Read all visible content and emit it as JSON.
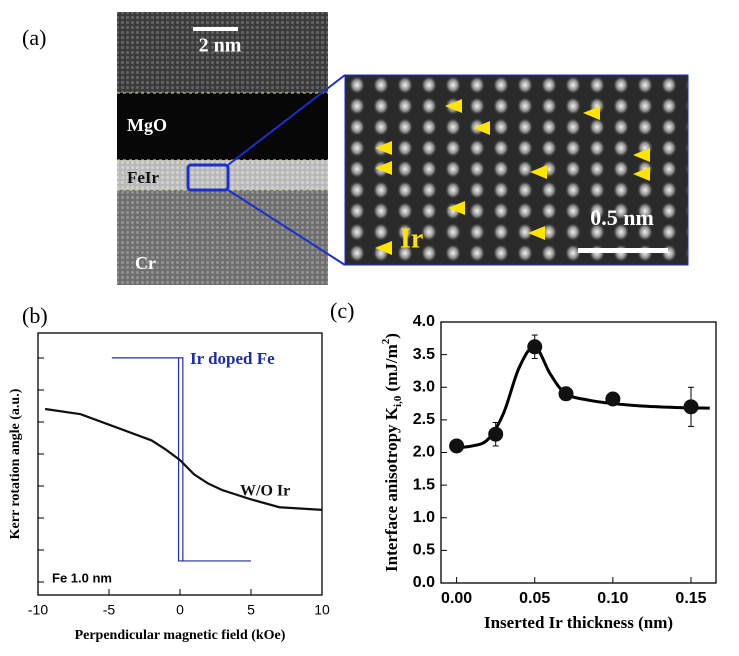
{
  "panel_a": {
    "label": "(a)",
    "scale_left": "2 nm",
    "layer_top": "MgO",
    "layer_mid": "FeIr",
    "layer_bottom": "Cr",
    "scale_right": "0.5 nm",
    "atom": "Ir"
  },
  "chart_data": [
    {
      "type": "line",
      "panel": "(b)",
      "xlabel": "Perpendicular magnetic field (kOe)",
      "ylabel": "Kerr rotation angle (a.u.)",
      "xlim": [
        -10,
        10
      ],
      "xticks": [
        -10,
        -5,
        0,
        5,
        10
      ],
      "ylim": [
        -1,
        1
      ],
      "annotation": "Fe 1.0 nm",
      "series": [
        {
          "name": "Ir doped Fe",
          "color": "#1f2ea8",
          "x": [
            -4.8,
            0.2,
            0.2,
            5,
            -0.1,
            -0.1
          ],
          "values": [
            0.81,
            0.81,
            -0.74,
            -0.74,
            -0.74,
            0.81
          ]
        },
        {
          "name": "W/O Ir",
          "color": "#111111",
          "x": [
            -9.5,
            -7,
            -5,
            -3,
            -2,
            -1,
            0,
            1,
            2,
            3,
            5,
            7,
            10
          ],
          "values": [
            0.42,
            0.38,
            0.3,
            0.22,
            0.18,
            0.11,
            0.03,
            -0.08,
            -0.15,
            -0.2,
            -0.27,
            -0.33,
            -0.35
          ]
        }
      ]
    },
    {
      "type": "scatter",
      "panel": "(c)",
      "xlabel": "Inserted Ir thickness (nm)",
      "ylabel": [
        "Interface anisotropy K",
        "i,0",
        " (mJ/m",
        "2",
        ")"
      ],
      "xlim": [
        -0.01,
        0.166
      ],
      "ylim": [
        0,
        4
      ],
      "xticks": [
        {
          "value": 0,
          "label": "0.00"
        },
        {
          "value": 0.05,
          "label": "0.05"
        },
        {
          "value": 0.1,
          "label": "0.10"
        },
        {
          "value": 0.15,
          "label": "0.15"
        }
      ],
      "yticks": [
        {
          "value": 0,
          "label": "0.0"
        },
        {
          "value": 0.5,
          "label": "0.5"
        },
        {
          "value": 1,
          "label": "1.0"
        },
        {
          "value": 1.5,
          "label": "1.5"
        },
        {
          "value": 2,
          "label": "2.0"
        },
        {
          "value": 2.5,
          "label": "2.5"
        },
        {
          "value": 3,
          "label": "3.0"
        },
        {
          "value": 3.5,
          "label": "3.5"
        },
        {
          "value": 4,
          "label": "4.0"
        }
      ],
      "series": [
        {
          "color": "#111111",
          "x": [
            0,
            0.025,
            0.05,
            0.07,
            0.1,
            0.15
          ],
          "values": [
            2.1,
            2.28,
            3.62,
            2.9,
            2.82,
            2.7
          ],
          "errors": [
            0.05,
            0.18,
            0.18,
            0.08,
            0.08,
            0.3
          ]
        }
      ],
      "curve": {
        "x": [
          -0.002,
          0.01,
          0.02,
          0.03,
          0.04,
          0.05,
          0.06,
          0.07,
          0.085,
          0.1,
          0.12,
          0.14,
          0.162
        ],
        "values": [
          2.07,
          2.1,
          2.2,
          2.6,
          3.3,
          3.62,
          3.2,
          2.9,
          2.8,
          2.75,
          2.71,
          2.69,
          2.68
        ]
      }
    }
  ]
}
